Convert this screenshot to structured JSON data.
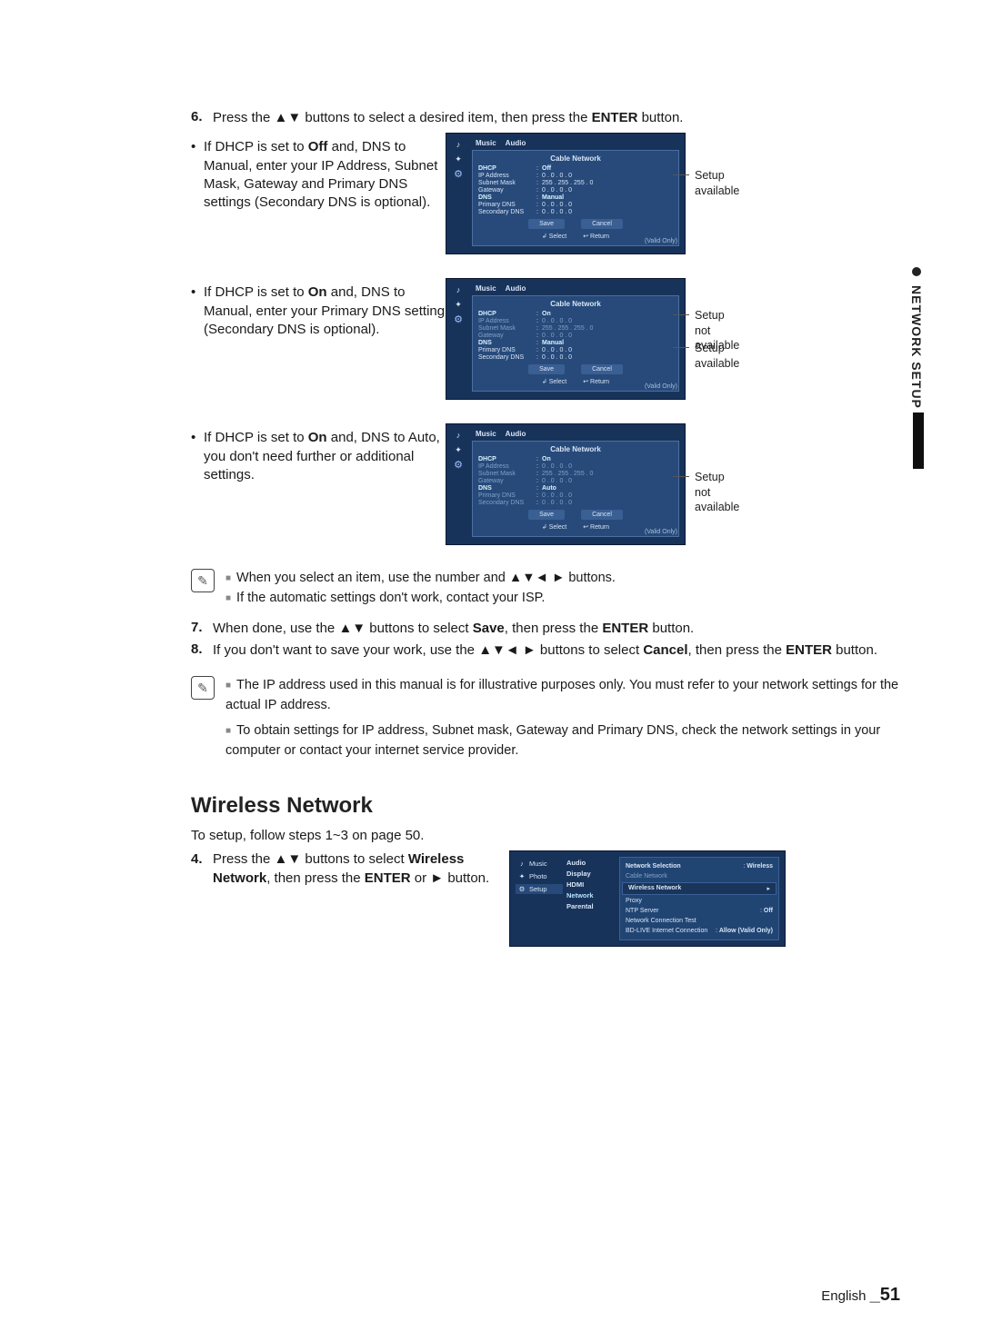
{
  "sidetab": {
    "label": "NETWORK SETUP"
  },
  "step6": {
    "num": "6.",
    "text_a": "Press the ",
    "text_b": " buttons to select a desired item, then press the ",
    "bold": "ENTER",
    "text_c": " button."
  },
  "case1": {
    "lead": "If DHCP is set to ",
    "bold1": "Off",
    "mid": " and, DNS to Manual, enter your IP Address, Subnet Mask, Gateway and Primary DNS settings (Secondary DNS is optional).",
    "annot1": "Setup available",
    "shot": {
      "title": "Cable Network",
      "rows": [
        {
          "k": "DHCP",
          "v": "Off",
          "bold": true
        },
        {
          "k": "IP Address",
          "v": "0 . 0 . 0 . 0"
        },
        {
          "k": "Subnet Mask",
          "v": "255 . 255 . 255 . 0"
        },
        {
          "k": "Gateway",
          "v": "0 . 0 . 0 . 0"
        },
        {
          "k": "DNS",
          "v": "Manual",
          "bold": true
        },
        {
          "k": "Primary DNS",
          "v": "0 . 0 . 0 . 0"
        },
        {
          "k": "Secondary DNS",
          "v": "0 . 0 . 0 . 0"
        }
      ],
      "btn_save": "Save",
      "btn_cancel": "Cancel",
      "leg_select": "Select",
      "leg_return": "Return",
      "corner": "(Valid Only)"
    }
  },
  "case2": {
    "lead": "If DHCP is set to ",
    "bold1": "On",
    "mid": " and, DNS to Manual, enter your Primary DNS setting (Secondary DNS is optional).",
    "annot1": "Setup not available",
    "annot2": "Setup available",
    "shot": {
      "title": "Cable Network",
      "rows": [
        {
          "k": "DHCP",
          "v": "On",
          "bold": true
        },
        {
          "k": "IP Address",
          "v": "0 . 0 . 0 . 0",
          "dim": true
        },
        {
          "k": "Subnet Mask",
          "v": "255 . 255 . 255 . 0",
          "dim": true
        },
        {
          "k": "Gateway",
          "v": "0 . 0 . 0 . 0",
          "dim": true
        },
        {
          "k": "DNS",
          "v": "Manual",
          "bold": true
        },
        {
          "k": "Primary DNS",
          "v": "0 . 0 . 0 . 0"
        },
        {
          "k": "Secondary DNS",
          "v": "0 . 0 . 0 . 0"
        }
      ],
      "btn_save": "Save",
      "btn_cancel": "Cancel",
      "leg_select": "Select",
      "leg_return": "Return",
      "corner": "(Valid Only)"
    }
  },
  "case3": {
    "lead": "If DHCP is set to ",
    "bold1": "On",
    "mid": " and, DNS to Auto, you don't need further or additional settings.",
    "annot1": "Setup not available",
    "shot": {
      "title": "Cable Network",
      "rows": [
        {
          "k": "DHCP",
          "v": "On",
          "bold": true
        },
        {
          "k": "IP Address",
          "v": "0 . 0 . 0 . 0",
          "dim": true
        },
        {
          "k": "Subnet Mask",
          "v": "255 . 255 . 255 . 0",
          "dim": true
        },
        {
          "k": "Gateway",
          "v": "0 . 0 . 0 . 0",
          "dim": true
        },
        {
          "k": "DNS",
          "v": "Auto",
          "bold": true
        },
        {
          "k": "Primary DNS",
          "v": "0 . 0 . 0 . 0",
          "dim": true
        },
        {
          "k": "Secondary DNS",
          "v": "0 . 0 . 0 . 0",
          "dim": true
        }
      ],
      "btn_save": "Save",
      "btn_cancel": "Cancel",
      "leg_select": "Select",
      "leg_return": "Return",
      "corner": "(Valid Only)"
    }
  },
  "note1": {
    "a": "When you select an item, use the number and ▲▼◄ ► buttons.",
    "b": "If the automatic settings don't work, contact your ISP."
  },
  "step7": {
    "num": "7.",
    "a": "When done, use the ",
    "b": " buttons to select ",
    "bold1": "Save",
    "c": ", then press the ",
    "bold2": "ENTER",
    "d": " button."
  },
  "step8": {
    "num": "8.",
    "a": "If you don't want to save your work, use the ",
    "b": " buttons to select ",
    "bold1": "Cancel",
    "c": ", then press the ",
    "bold2": "ENTER",
    "d": " button."
  },
  "note2": {
    "a": "The IP address used in this manual is for illustrative purposes only. You must refer to your network settings for the actual IP address.",
    "b": "To obtain settings for IP address, Subnet mask, Gateway and Primary DNS, check the network settings in your computer or contact your internet service provider."
  },
  "wireless": {
    "heading": "Wireless Network",
    "intro": "To setup, follow steps 1~3 on page 50.",
    "step4": {
      "num": "4.",
      "a": "Press the ",
      "b": " buttons to select ",
      "bold1": "Wireless Network",
      "c": ", then press the ",
      "bold2": "ENTER",
      "d": " or ",
      "e": " button."
    },
    "shot": {
      "left": [
        "Music",
        "Photo",
        "Setup"
      ],
      "mid": [
        "Audio",
        "Display",
        "HDMI",
        "Network",
        "Parental"
      ],
      "right_title": "Network Selection",
      "right_val": "Wireless",
      "r_cable": "Cable Network",
      "r_wireless": "Wireless Network",
      "items": [
        {
          "k": "Proxy",
          "v": ""
        },
        {
          "k": "NTP Server",
          "v": "Off"
        },
        {
          "k": "Network Connection Test",
          "v": ""
        },
        {
          "k": "BD-LIVE Internet Connection",
          "v": "Allow (Valid Only)"
        }
      ]
    }
  },
  "arrows": {
    "updown": "▲▼",
    "all4": "▲▼◄ ►",
    "right": "►"
  },
  "footer": {
    "lang": "English ",
    "page": "_51"
  },
  "topicons": {
    "music": "♪",
    "photo": "✦",
    "gear": "⚙",
    "note": "✎"
  },
  "legend_icons": {
    "sel": "↲",
    "ret": "↩"
  }
}
